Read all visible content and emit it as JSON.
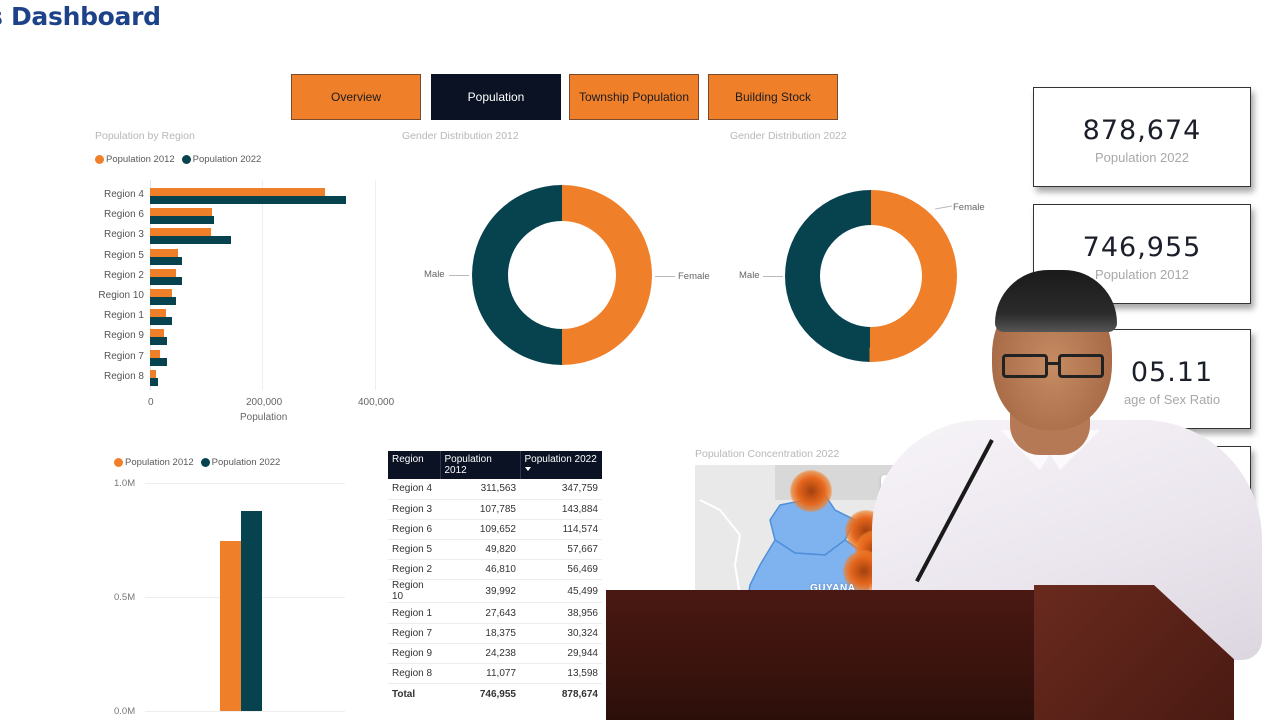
{
  "header": {
    "title": "s Dashboard"
  },
  "nav": {
    "tabs": [
      {
        "label": "Overview",
        "active": false
      },
      {
        "label": "Population",
        "active": true
      },
      {
        "label": "Township Population",
        "active": false
      },
      {
        "label": "Building Stock",
        "active": false
      }
    ]
  },
  "colors": {
    "orange": "#f07f2a",
    "teal": "#07424f",
    "navy": "#0a1224",
    "title_blue": "#1d4289"
  },
  "region_chart": {
    "title": "Population by Region",
    "legend": [
      "Population 2012",
      "Population 2022"
    ],
    "x_ticks": [
      "0",
      "200,000",
      "400,000"
    ],
    "x_title": "Population"
  },
  "gender_2012": {
    "title": "Gender Distribution 2012",
    "male_label": "Male",
    "female_label": "Female"
  },
  "gender_2022": {
    "title": "Gender Distribution 2022",
    "male_label": "Male",
    "female_label": "Female"
  },
  "kpis": [
    {
      "value": "878,674",
      "label": "Population 2022"
    },
    {
      "value": "746,955",
      "label": "Population 2012"
    },
    {
      "value": "05.11",
      "label": "age of Sex Ratio"
    },
    {
      "value": "",
      "label": ""
    }
  ],
  "total_chart": {
    "legend": [
      "Population 2012",
      "Population 2022"
    ],
    "y_ticks": [
      "1.0M",
      "0.5M",
      "0.0M"
    ]
  },
  "table": {
    "headers": [
      "Region",
      "Population 2012",
      "Population 2022"
    ],
    "rows": [
      [
        "Region 4",
        "311,563",
        "347,759"
      ],
      [
        "Region 3",
        "107,785",
        "143,884"
      ],
      [
        "Region 6",
        "109,652",
        "114,574"
      ],
      [
        "Region 5",
        "49,820",
        "57,667"
      ],
      [
        "Region 2",
        "46,810",
        "56,469"
      ],
      [
        "Region 10",
        "39,992",
        "45,499"
      ],
      [
        "Region 1",
        "27,643",
        "38,956"
      ],
      [
        "Region 7",
        "18,375",
        "30,324"
      ],
      [
        "Region 9",
        "24,238",
        "29,944"
      ],
      [
        "Region 8",
        "11,077",
        "13,598"
      ]
    ],
    "total": [
      "Total",
      "746,955",
      "878,674"
    ]
  },
  "map": {
    "title": "Population Concentration 2022",
    "country_label": "GUYANA",
    "control_label": "G"
  },
  "chart_data": [
    {
      "type": "bar",
      "orientation": "horizontal",
      "title": "Population by Region",
      "categories": [
        "Region 4",
        "Region 6",
        "Region 3",
        "Region 5",
        "Region 2",
        "Region 10",
        "Region 1",
        "Region 9",
        "Region 7",
        "Region 8"
      ],
      "series": [
        {
          "name": "Population 2012",
          "color": "#f07f2a",
          "values": [
            311563,
            109652,
            107785,
            49820,
            46810,
            39992,
            27643,
            24238,
            18375,
            11077
          ]
        },
        {
          "name": "Population 2022",
          "color": "#07424f",
          "values": [
            347759,
            114574,
            143884,
            57667,
            56469,
            45499,
            38956,
            29944,
            30324,
            13598
          ]
        }
      ],
      "xlabel": "Population",
      "ylabel": "",
      "xlim": [
        0,
        400000
      ],
      "x_ticks": [
        "0",
        "200,000",
        "400,000"
      ],
      "grid": true,
      "legend_position": "top-left"
    },
    {
      "type": "pie",
      "donut": true,
      "title": "Gender Distribution 2012",
      "categories": [
        "Female",
        "Male"
      ],
      "values": [
        50,
        50
      ],
      "colors": [
        "#f07f2a",
        "#07424f"
      ]
    },
    {
      "type": "pie",
      "donut": true,
      "title": "Gender Distribution 2022",
      "categories": [
        "Female",
        "Male"
      ],
      "values": [
        50.5,
        49.5
      ],
      "colors": [
        "#f07f2a",
        "#07424f"
      ]
    },
    {
      "type": "bar",
      "orientation": "vertical",
      "title": "",
      "categories": [
        "Total"
      ],
      "series": [
        {
          "name": "Population 2012",
          "color": "#f07f2a",
          "values": [
            746955
          ]
        },
        {
          "name": "Population 2022",
          "color": "#07424f",
          "values": [
            878674
          ]
        }
      ],
      "ylim": [
        0,
        1000000
      ],
      "y_ticks": [
        "0.0M",
        "0.5M",
        "1.0M"
      ],
      "grid": true,
      "legend_position": "top-left"
    }
  ]
}
